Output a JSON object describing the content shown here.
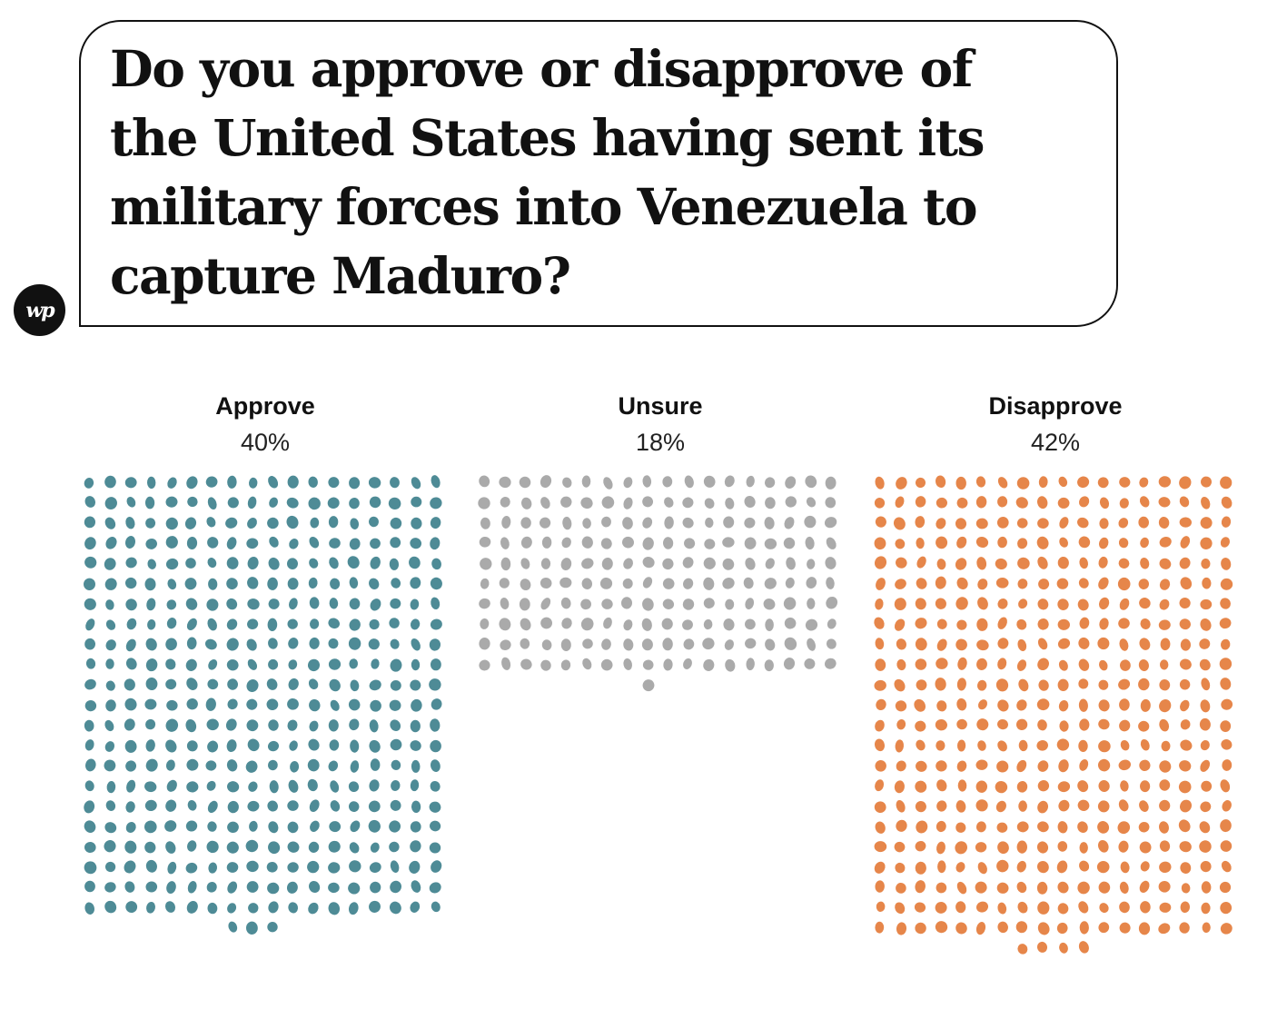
{
  "question": "Do you approve or disapprove of the United States having sent its military forces into Venezuela to capture Maduro?",
  "logo": {
    "text": "wp",
    "icon": "washington-post-logo"
  },
  "chart_data": {
    "type": "waffle",
    "title": "Do you approve or disapprove of the United States having sent its military forces into Venezuela to capture Maduro?",
    "dots_per_row": 18,
    "unit": "one dot per respondent",
    "series": [
      {
        "name": "Approve",
        "label": "40%",
        "value": 40,
        "dots": 399,
        "color": "#4e8b96"
      },
      {
        "name": "Unsure",
        "label": "18%",
        "value": 18,
        "dots": 181,
        "color": "#aaaaaa"
      },
      {
        "name": "Disapprove",
        "label": "42%",
        "value": 42,
        "dots": 418,
        "color": "#e6864a"
      }
    ]
  }
}
